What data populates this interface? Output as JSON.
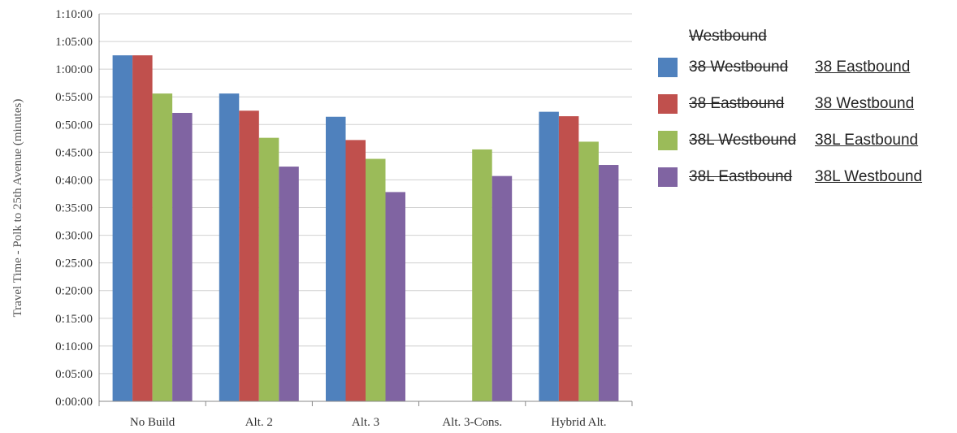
{
  "chart_data": {
    "type": "bar",
    "categories": [
      "No Build",
      "Alt. 2",
      "Alt. 3",
      "Alt. 3-Cons.",
      "Hybrid Alt."
    ],
    "ylabel": "Travel Time - Polk to 25th Avenue (minutes)",
    "ylim": [
      0,
      70
    ],
    "yticks": [
      "0:00:00",
      "0:05:00",
      "0:10:00",
      "0:15:00",
      "0:20:00",
      "0:25:00",
      "0:30:00",
      "0:35:00",
      "0:40:00",
      "0:45:00",
      "0:50:00",
      "0:55:00",
      "1:00:00",
      "1:05:00",
      "1:10:00"
    ],
    "grid": true,
    "legend_placement": "right",
    "legend_title": "Westbound",
    "series": [
      {
        "name": "38 Westbound",
        "replacement": "38 Eastbound",
        "color": "#4F81BD",
        "values": [
          62.5,
          55.6,
          51.4,
          null,
          52.3
        ]
      },
      {
        "name": "38 Eastbound",
        "replacement": "38 Westbound",
        "color": "#C0504D",
        "values": [
          62.5,
          52.5,
          47.2,
          null,
          51.5
        ]
      },
      {
        "name": "38L Westbound",
        "replacement": "38L Eastbound",
        "color": "#9BBB59",
        "values": [
          55.6,
          47.6,
          43.8,
          45.5,
          46.9
        ]
      },
      {
        "name": "38L Eastbound",
        "replacement": "38L Westbound",
        "color": "#8064A2",
        "values": [
          52.1,
          42.4,
          37.8,
          40.7,
          42.7
        ]
      }
    ]
  }
}
